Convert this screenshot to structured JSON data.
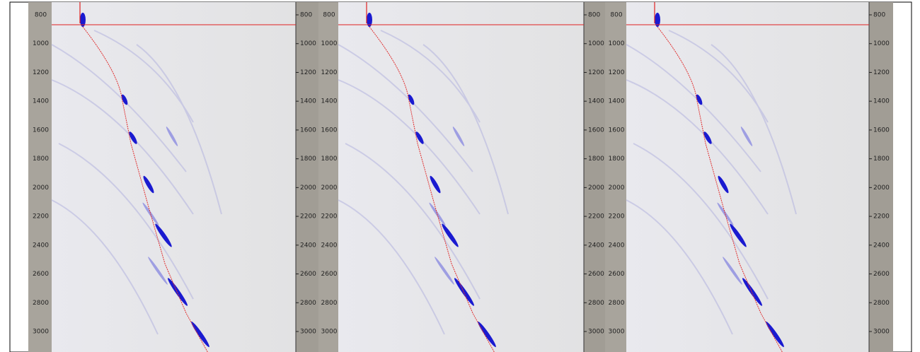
{
  "panels": [
    {
      "left_ticks": [
        800,
        1000,
        1200,
        1400,
        1600,
        1800,
        2000,
        2200,
        2400,
        2600,
        2800,
        3000
      ],
      "right_ticks": [
        800,
        1000,
        1200,
        1400,
        1600,
        1800,
        2000,
        2200,
        2400,
        2600,
        2800,
        3000
      ]
    },
    {
      "left_ticks": [
        800,
        1000,
        1200,
        1400,
        1600,
        1800,
        2000,
        2200,
        2400,
        2600,
        2800,
        3000
      ],
      "right_ticks": [
        800,
        1000,
        1200,
        1400,
        1600,
        1800,
        2000,
        2200,
        2400,
        2600,
        2800,
        3000
      ]
    },
    {
      "left_ticks": [
        800,
        1000,
        1200,
        1400,
        1600,
        1800,
        2000,
        2200,
        2400,
        2600,
        2800,
        3000
      ],
      "right_ticks": [
        800,
        1000,
        1200,
        1400,
        1600,
        1800,
        2000,
        2200,
        2400,
        2600,
        2800,
        3000
      ]
    }
  ]
}
